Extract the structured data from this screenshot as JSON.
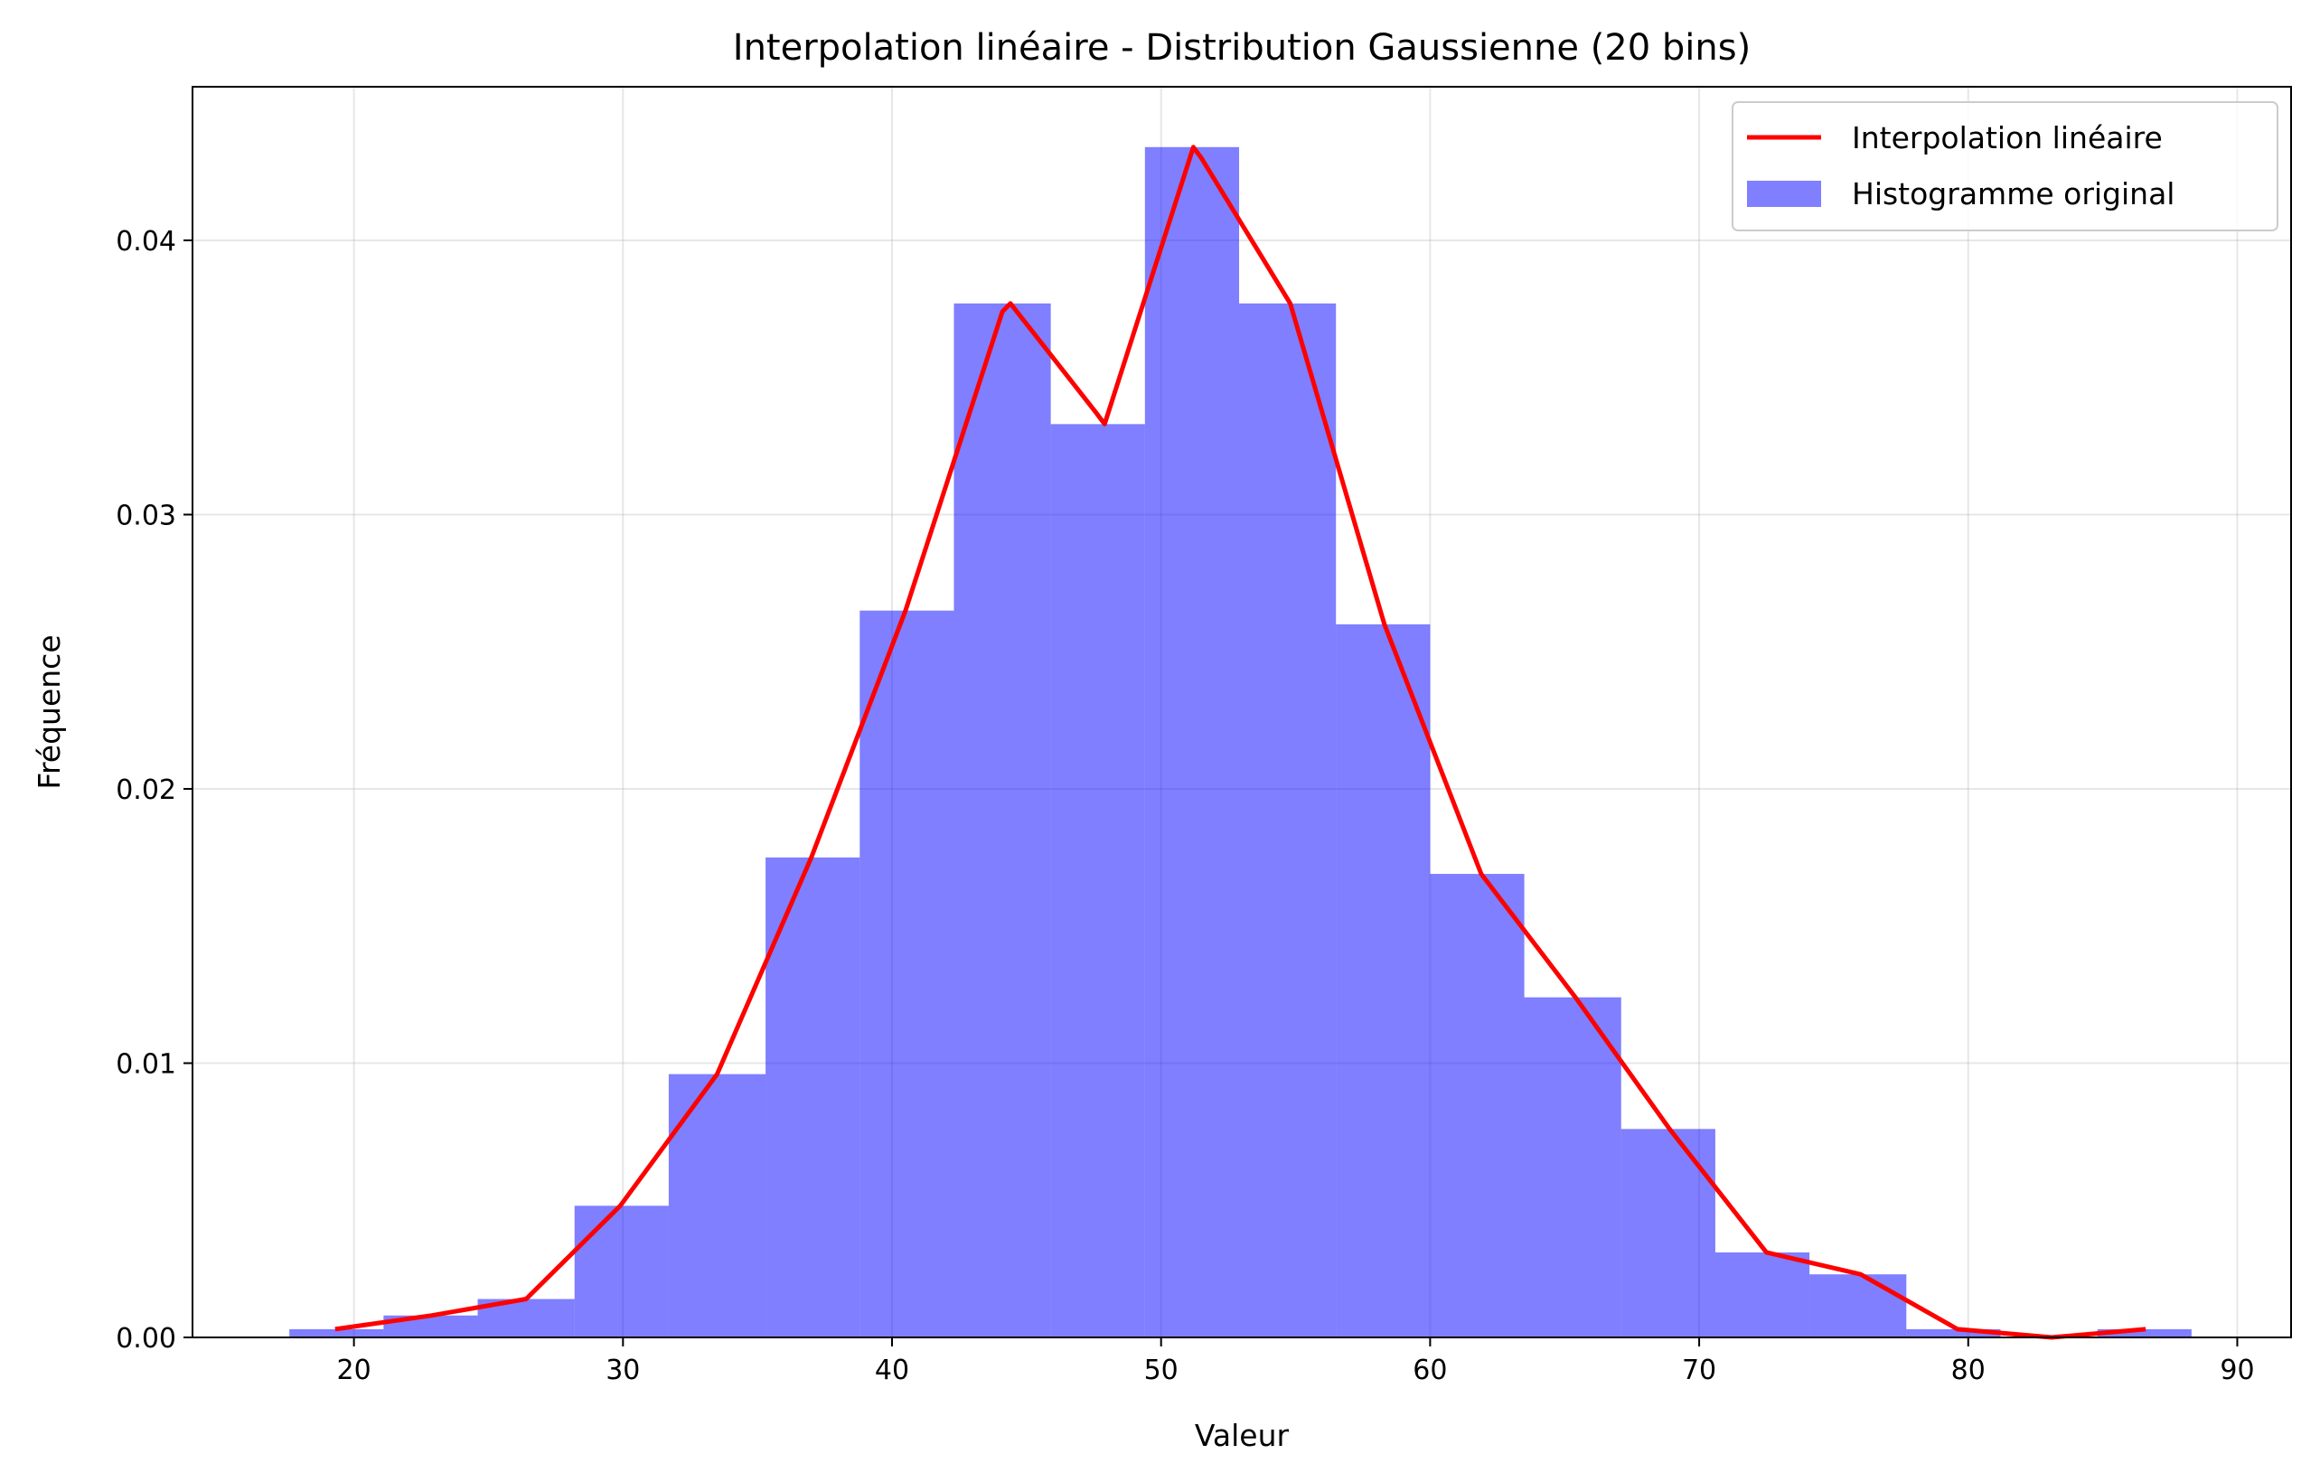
{
  "chart_data": {
    "type": "bar",
    "title": "Interpolation linéaire - Distribution Gaussienne (20 bins)",
    "xlabel": "Valeur",
    "ylabel": "Fréquence",
    "xlim": [
      14,
      92
    ],
    "ylim": [
      0,
      0.0456
    ],
    "xticks": [
      20,
      30,
      40,
      50,
      60,
      70,
      80,
      90
    ],
    "yticks": [
      0.0,
      0.01,
      0.02,
      0.03,
      0.04
    ],
    "xtick_labels": [
      "20",
      "30",
      "40",
      "50",
      "60",
      "70",
      "80",
      "90"
    ],
    "ytick_labels": [
      "0.00",
      "0.01",
      "0.02",
      "0.03",
      "0.04"
    ],
    "grid": true,
    "legend_position": "top-right",
    "colors": {
      "histogram": "#8080ff",
      "line": "#ff0000"
    },
    "series": [
      {
        "name": "Interpolation linéaire",
        "type": "line",
        "x": [
          19.3,
          22.9,
          26.4,
          29.9,
          33.5,
          37.0,
          40.5,
          44.1,
          44.4,
          47.6,
          47.9,
          51.2,
          51.5,
          54.8,
          58.3,
          61.9,
          65.4,
          68.9,
          72.5,
          76.0,
          79.6,
          83.1,
          86.6
        ],
        "y": [
          0.0003,
          0.0008,
          0.0014,
          0.0048,
          0.0096,
          0.0175,
          0.0265,
          0.0374,
          0.0377,
          0.0337,
          0.0333,
          0.0434,
          0.043,
          0.0377,
          0.026,
          0.0169,
          0.0124,
          0.0076,
          0.0031,
          0.0023,
          0.0003,
          0.0,
          0.0003
        ]
      },
      {
        "name": "Histogramme original",
        "type": "histogram",
        "bin_edges": [
          17.6,
          21.1,
          24.6,
          28.2,
          31.7,
          35.3,
          38.8,
          42.3,
          45.9,
          49.4,
          52.9,
          56.5,
          60.0,
          63.5,
          67.1,
          70.6,
          74.1,
          77.7,
          81.2,
          84.8,
          88.3
        ],
        "values": [
          0.0003,
          0.0008,
          0.0014,
          0.0048,
          0.0096,
          0.0175,
          0.0265,
          0.0377,
          0.0333,
          0.0434,
          0.0377,
          0.026,
          0.0169,
          0.0124,
          0.0076,
          0.0031,
          0.0023,
          0.0003,
          0.0,
          0.0003
        ]
      }
    ]
  }
}
